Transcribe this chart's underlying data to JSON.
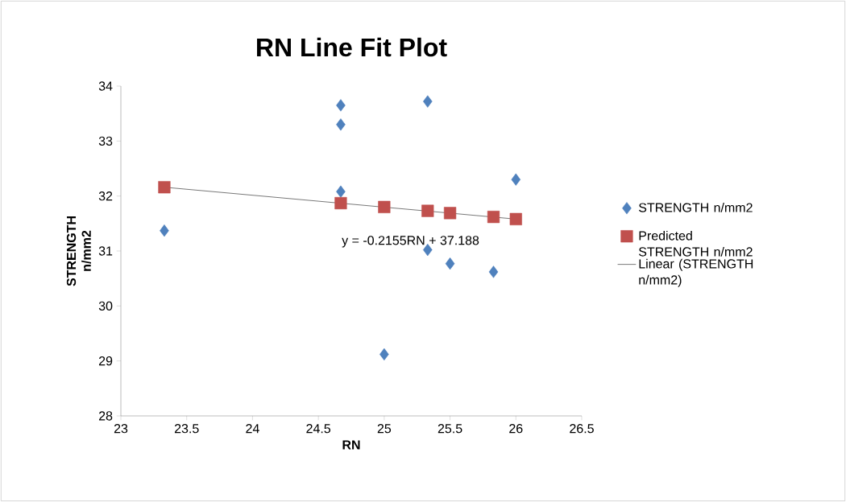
{
  "chart_data": {
    "type": "scatter",
    "title": "RN Line Fit  Plot",
    "xlabel": "RN",
    "ylabel": "STRENGTH n/mm2",
    "xlim": [
      23,
      26.5
    ],
    "xticks": [
      23,
      23.5,
      24,
      24.5,
      25,
      25.5,
      26,
      26.5
    ],
    "ylim": [
      28,
      34
    ],
    "yticks": [
      28,
      29,
      30,
      31,
      32,
      33,
      34
    ],
    "grid": false,
    "legend": "right",
    "annotations": [
      "y = -0.2155RN + 37.188"
    ],
    "series": [
      {
        "name": "STRENGTH n/mm2",
        "marker": "diamond",
        "color": "#4f81bd",
        "x": [
          23.33,
          24.67,
          24.67,
          24.67,
          25,
          25.33,
          25.33,
          25.5,
          25.83,
          26
        ],
        "values": [
          31.37,
          33.65,
          33.3,
          32.08,
          29.12,
          33.72,
          31.02,
          30.77,
          30.62,
          32.3
        ]
      },
      {
        "name": "Predicted STRENGTH n/mm2",
        "marker": "square",
        "color": "#c0504d",
        "x": [
          23.33,
          24.67,
          25,
          25.33,
          25.5,
          25.83,
          26
        ],
        "values": [
          32.16,
          31.87,
          31.8,
          31.73,
          31.69,
          31.62,
          31.58
        ]
      },
      {
        "name": "Linear (STRENGTH n/mm2)",
        "type": "line",
        "marker": "none",
        "color": "#000000",
        "x": [
          23.33,
          26
        ],
        "values": [
          32.16,
          31.58
        ]
      }
    ]
  }
}
